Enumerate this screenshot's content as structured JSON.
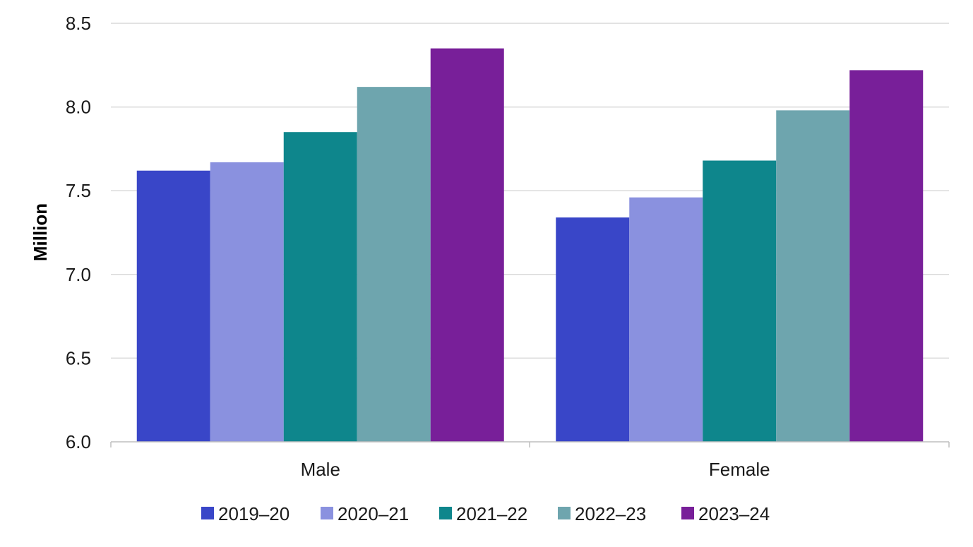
{
  "chart_data": {
    "type": "bar",
    "title": "",
    "xlabel": "",
    "ylabel": "Million",
    "ylim": [
      6.0,
      8.5
    ],
    "yticks": [
      "6.0",
      "6.5",
      "7.0",
      "7.5",
      "8.0",
      "8.5"
    ],
    "ytick_values": [
      6.0,
      6.5,
      7.0,
      7.5,
      8.0,
      8.5
    ],
    "grid": true,
    "legend_position": "bottom",
    "categories": [
      "Male",
      "Female"
    ],
    "series": [
      {
        "name": "2019–20",
        "color": "#3946C8",
        "values": [
          7.62,
          7.34
        ]
      },
      {
        "name": "2020–21",
        "color": "#8A91DF",
        "values": [
          7.67,
          7.46
        ]
      },
      {
        "name": "2021–22",
        "color": "#0E868C",
        "values": [
          7.85,
          7.68
        ]
      },
      {
        "name": "2022–23",
        "color": "#6EA5AE",
        "values": [
          8.12,
          7.98
        ]
      },
      {
        "name": "2023–24",
        "color": "#781F99",
        "values": [
          8.35,
          8.22
        ]
      }
    ]
  }
}
